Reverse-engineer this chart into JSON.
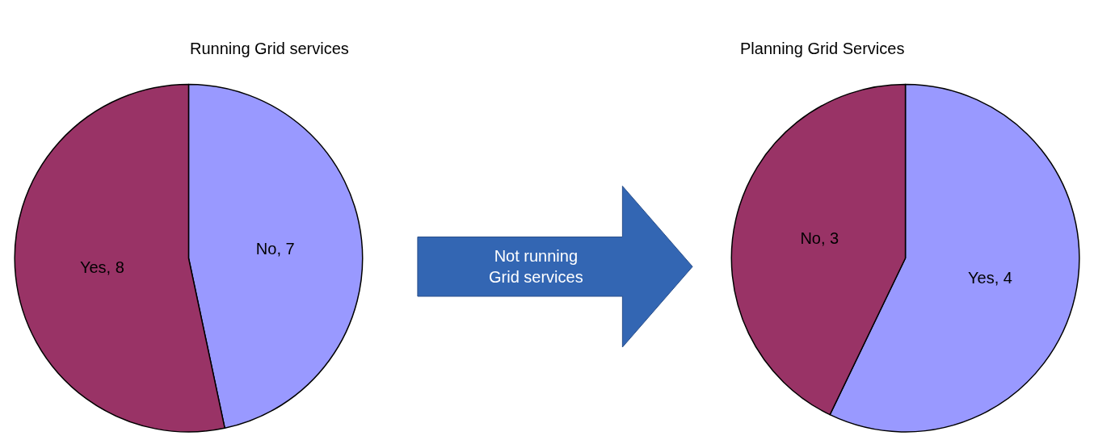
{
  "chart_data": [
    {
      "type": "pie",
      "title": "Running Grid services",
      "categories": [
        "No, 7",
        "Yes, 8"
      ],
      "values": [
        7,
        8
      ],
      "colors": [
        "#9999ff",
        "#993366"
      ],
      "annotations": [
        "Not running\nGrid services"
      ]
    },
    {
      "type": "pie",
      "title": "Planning Grid Services",
      "categories": [
        "Yes, 4",
        "No, 3"
      ],
      "values": [
        4,
        3
      ],
      "colors": [
        "#9999ff",
        "#993366"
      ]
    }
  ]
}
